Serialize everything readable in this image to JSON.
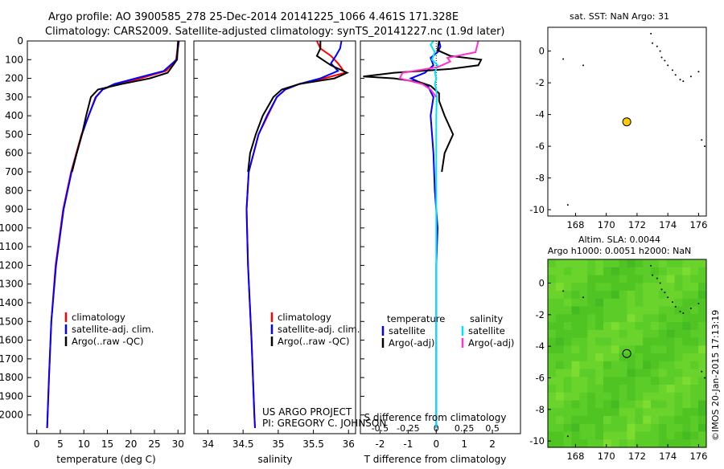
{
  "header": {
    "line1": "Argo profile: AO 3900585_278 25-Dec-2014 20141225_1066 4.461S 171.328E",
    "line2": "Climatology: CARS2009. Satellite-adjusted climatology: synTS_20141227.nc (1.9d later)"
  },
  "credits": {
    "line1": "US ARGO PROJECT",
    "line2": "PI: GREGORY C. JOHNSON"
  },
  "stamp": "©IMOS 20-Jan-2015 17:13:19",
  "colors": {
    "climatology": "#ff0000",
    "satellite": "#0000ff",
    "argo": "#000000",
    "sat_sal": "#00e5ff",
    "argo_sal": "#ff33cc",
    "marker": "#ffcc00",
    "sla_bg": "#55cc22"
  },
  "chart_data": [
    {
      "type": "line",
      "title": "",
      "xlabel": "temperature (deg C)",
      "ylabel": "",
      "xlim": [
        -2,
        31.5
      ],
      "ylim": [
        2100,
        0
      ],
      "xticks": [
        "0",
        "5",
        "10",
        "15",
        "20",
        "25",
        "30"
      ],
      "yticks": [
        "0",
        "100",
        "200",
        "300",
        "400",
        "500",
        "600",
        "700",
        "800",
        "900",
        "1000",
        "1100",
        "1200",
        "1300",
        "1400",
        "1500",
        "1600",
        "1700",
        "1800",
        "1900",
        "2000"
      ],
      "legend": [
        "climatology",
        "satellite-adj. clim.",
        "Argo(..raw -QC)"
      ],
      "legend_position": "lower-center",
      "series": [
        {
          "name": "climatology",
          "color": "#ff0000",
          "depth": [
            0,
            40,
            100,
            160,
            200,
            230,
            260,
            300,
            400,
            500,
            700,
            900,
            1200,
            1500,
            1800,
            2000,
            2070
          ],
          "values": [
            30.0,
            29.9,
            29.6,
            27.5,
            22,
            17,
            14,
            12.5,
            11,
            9.5,
            7.3,
            5.6,
            4.0,
            3.1,
            2.6,
            2.3,
            2.2
          ]
        },
        {
          "name": "satellite-adj. clim.",
          "color": "#0000ff",
          "depth": [
            0,
            40,
            100,
            160,
            200,
            230,
            260,
            300,
            400,
            500,
            700,
            900,
            1200,
            1500,
            1800,
            2000,
            2070
          ],
          "values": [
            30.2,
            30.0,
            29.7,
            27.0,
            21,
            16.5,
            14,
            12.6,
            11,
            9.6,
            7.4,
            5.7,
            4.1,
            3.1,
            2.6,
            2.3,
            2.2
          ]
        },
        {
          "name": "Argo(..raw -QC)",
          "color": "#000000",
          "depth": [
            0,
            20,
            100,
            170,
            200,
            230,
            260,
            300,
            400,
            500,
            600,
            700
          ],
          "values": [
            30.1,
            30.0,
            29.8,
            27.8,
            24,
            18,
            13,
            11.5,
            10.5,
            9.6,
            8.5,
            7.5
          ]
        }
      ]
    },
    {
      "type": "line",
      "title": "",
      "xlabel": "salinity",
      "ylabel": "",
      "xlim": [
        33.8,
        36.1
      ],
      "ylim": [
        2100,
        0
      ],
      "xticks": [
        "34",
        "34.5",
        "35",
        "35.5",
        "36"
      ],
      "legend": [
        "climatology",
        "satellite-adj. clim.",
        "Argo(..raw -QC)"
      ],
      "legend_position": "lower-center",
      "series": [
        {
          "name": "climatology",
          "color": "#ff0000",
          "depth": [
            0,
            40,
            80,
            120,
            170,
            200,
            230,
            260,
            300,
            400,
            500,
            700,
            900,
            1200,
            1600,
            2000,
            2070
          ],
          "values": [
            35.55,
            35.6,
            35.75,
            35.85,
            35.95,
            35.65,
            35.3,
            35.1,
            34.98,
            34.85,
            34.72,
            34.58,
            34.55,
            34.57,
            34.62,
            34.66,
            34.67
          ]
        },
        {
          "name": "satellite-adj. clim.",
          "color": "#0000ff",
          "depth": [
            0,
            40,
            80,
            120,
            160,
            200,
            230,
            260,
            300,
            400,
            500,
            700,
            900,
            1200,
            1600,
            2000,
            2070
          ],
          "values": [
            35.9,
            35.88,
            35.82,
            35.75,
            35.85,
            35.6,
            35.3,
            35.1,
            34.98,
            34.84,
            34.72,
            34.58,
            34.55,
            34.57,
            34.62,
            34.66,
            34.67
          ]
        },
        {
          "name": "Argo(..raw -QC)",
          "color": "#000000",
          "depth": [
            0,
            40,
            80,
            130,
            170,
            200,
            230,
            260,
            300,
            400,
            500,
            600,
            700
          ],
          "values": [
            35.6,
            35.6,
            35.55,
            35.75,
            35.98,
            35.8,
            35.3,
            35.05,
            34.93,
            34.78,
            34.68,
            34.6,
            34.57
          ]
        }
      ]
    },
    {
      "type": "line",
      "title": "",
      "xlabel": "T difference from climatology",
      "xlabel2": "S difference from climatology",
      "xlim": [
        -2.7,
        3.0
      ],
      "ylim": [
        2100,
        0
      ],
      "xticks": [
        "-2",
        "-1",
        "0",
        "1",
        "2"
      ],
      "xticks2": [
        "-0.5",
        "-0.25",
        "0",
        "0.25",
        "0.5"
      ],
      "legend_headers": [
        "temperature",
        "salinity"
      ],
      "legend": [
        "satellite",
        "Argo(-adj)",
        "satellite",
        "Argo(-adj)"
      ],
      "legend_position": "lower-center",
      "series": [
        {
          "name": "satellite",
          "quantity": "temperature",
          "color": "#0000ff",
          "depth": [
            0,
            30,
            60,
            90,
            130,
            170,
            200,
            240,
            300,
            400,
            600,
            800,
            1000,
            1200,
            1500,
            1800,
            2070
          ],
          "values": [
            0.1,
            0.15,
            0.05,
            -0.2,
            -0.1,
            -0.4,
            -0.9,
            -0.3,
            -0.1,
            -0.2,
            -0.1,
            -0.05,
            0.05,
            0.0,
            0.0,
            0.0,
            0.0
          ]
        },
        {
          "name": "Argo(-adj)",
          "quantity": "temperature",
          "color": "#000000",
          "depth": [
            0,
            50,
            80,
            100,
            130,
            150,
            170,
            190,
            200,
            220,
            240,
            280,
            320,
            400,
            500,
            600,
            700
          ],
          "values": [
            0.1,
            0.05,
            0.5,
            1.6,
            1.5,
            0.5,
            -1.5,
            -2.6,
            -1.5,
            -0.6,
            -0.2,
            0.1,
            0.1,
            0.3,
            0.6,
            0.3,
            0.2
          ]
        },
        {
          "name": "satellite",
          "quantity": "salinity",
          "color": "#00e5ff",
          "depth": [
            0,
            20,
            60,
            100,
            130,
            170,
            200,
            230,
            260,
            300,
            400,
            600,
            800,
            1000,
            1500,
            2070
          ],
          "values": [
            -0.1,
            -0.2,
            -0.05,
            -0.15,
            0.05,
            -0.05,
            0.0,
            -0.05,
            0.0,
            0.02,
            0.0,
            0.0,
            0.0,
            0.0,
            0.0,
            0.0
          ]
        },
        {
          "name": "Argo(-adj)",
          "quantity": "salinity",
          "color": "#ff33cc",
          "depth": [
            0,
            60,
            90,
            110,
            140,
            170,
            200,
            230,
            260,
            300
          ],
          "values": [
            1.5,
            1.4,
            0.4,
            0.5,
            0.05,
            -1.2,
            -1.3,
            -0.5,
            -0.2,
            0.0
          ]
        }
      ]
    },
    {
      "type": "scatter",
      "title": "sat. SST: NaN Argo: 31",
      "xlim": [
        166.2,
        176.5
      ],
      "ylim": [
        -10.4,
        1.5
      ],
      "xticks": [
        "168",
        "170",
        "172",
        "174",
        "176"
      ],
      "yticks": [
        "0",
        "-2",
        "-4",
        "-6",
        "-8",
        "-10"
      ],
      "float_position": {
        "lon": 171.33,
        "lat": -4.46
      },
      "series": [
        {
          "name": "",
          "lon": [
            172.9,
            173.0,
            173.3,
            173.5,
            173.6,
            173.8,
            174.0,
            174.3,
            174.5,
            174.8,
            175.0,
            175.5,
            176.0,
            176.2,
            176.4,
            167.2,
            168.5,
            167.5
          ],
          "lat": [
            1.1,
            0.5,
            0.3,
            0.0,
            -0.4,
            -0.6,
            -0.9,
            -1.2,
            -1.5,
            -1.8,
            -1.9,
            -1.6,
            -1.3,
            -5.6,
            -6.0,
            -0.5,
            -0.9,
            -9.7
          ]
        }
      ]
    },
    {
      "type": "heatmap",
      "title": "Altim. SLA: 0.0044",
      "subtitle": "Argo h1000: 0.0051 h2000: NaN",
      "xlim": [
        166.2,
        176.5
      ],
      "ylim": [
        -10.4,
        1.5
      ],
      "xticks": [
        "168",
        "170",
        "172",
        "174",
        "176"
      ],
      "yticks": [
        "0",
        "-2",
        "-4",
        "-6",
        "-8",
        "-10"
      ],
      "float_position": {
        "lon": 171.33,
        "lat": -4.46
      }
    }
  ]
}
